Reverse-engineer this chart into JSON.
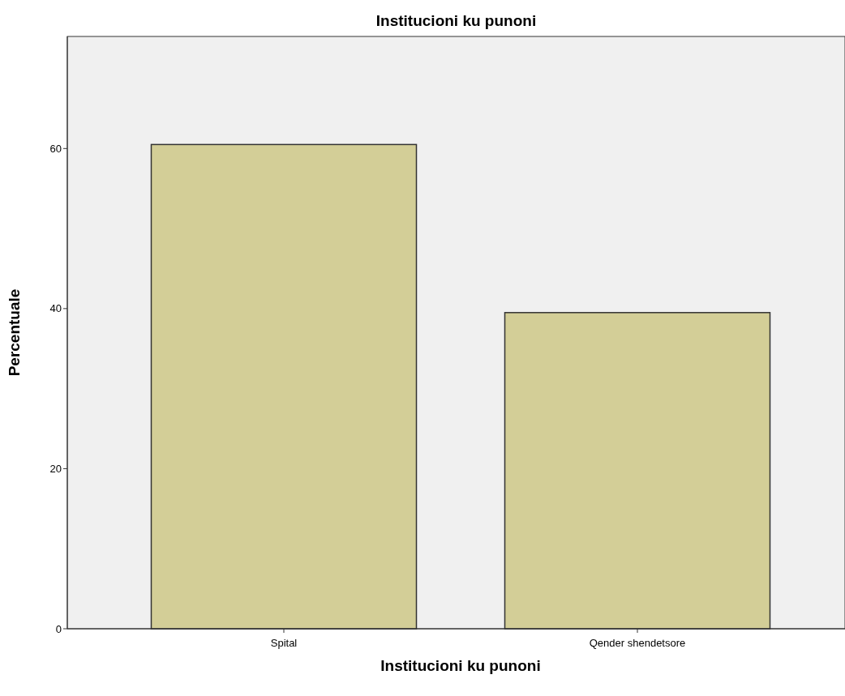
{
  "chart_data": {
    "type": "bar",
    "title": "Institucioni ku punoni",
    "xlabel": "Institucioni ku punoni",
    "ylabel": "Percentuale",
    "categories": [
      "Spital",
      "Qender shendetsore"
    ],
    "values": [
      60.5,
      39.5
    ],
    "color": "#d3ce97",
    "ylim": [
      0,
      74
    ],
    "yticks": [
      0,
      20,
      40,
      60
    ],
    "grid": false
  }
}
